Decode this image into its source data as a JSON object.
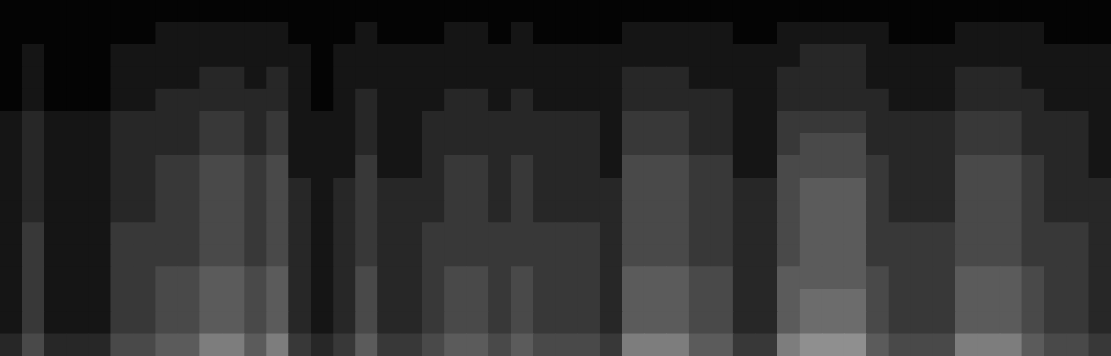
{
  "chart_data": {
    "type": "heatmap",
    "tick_labels": false,
    "grid": false,
    "color": "#a0a0a0",
    "zlim": [
      0,
      9
    ],
    "cells": [
      [
        0,
        0,
        0,
        0,
        0,
        0,
        0,
        0,
        0,
        0,
        0,
        0,
        0,
        0,
        0,
        0,
        0,
        0,
        0,
        0,
        0,
        0,
        0,
        0,
        0,
        0,
        0,
        0,
        0,
        0,
        0,
        0,
        0,
        0,
        0,
        0,
        0,
        0,
        0,
        0,
        0,
        0,
        0,
        0,
        0,
        0,
        0,
        0,
        0,
        0
      ],
      [
        0,
        0,
        0,
        0,
        0,
        0,
        0,
        1,
        1,
        1,
        1,
        1,
        1,
        0,
        0,
        0,
        1,
        0,
        0,
        0,
        1,
        1,
        0,
        1,
        0,
        0,
        0,
        0,
        1,
        1,
        1,
        1,
        1,
        0,
        0,
        1,
        1,
        1,
        1,
        1,
        0,
        0,
        0,
        1,
        1,
        1,
        1,
        0,
        0,
        0
      ],
      [
        0,
        1,
        0,
        0,
        0,
        1,
        1,
        1,
        1,
        1,
        1,
        1,
        1,
        1,
        0,
        1,
        1,
        1,
        1,
        1,
        1,
        1,
        1,
        1,
        1,
        1,
        1,
        1,
        1,
        1,
        1,
        1,
        1,
        1,
        1,
        1,
        2,
        2,
        2,
        1,
        1,
        1,
        1,
        1,
        1,
        1,
        1,
        1,
        1,
        1
      ],
      [
        0,
        1,
        0,
        0,
        0,
        1,
        1,
        1,
        1,
        2,
        2,
        1,
        2,
        1,
        0,
        1,
        1,
        1,
        1,
        1,
        1,
        1,
        1,
        1,
        1,
        1,
        1,
        1,
        2,
        2,
        2,
        1,
        1,
        1,
        1,
        2,
        2,
        2,
        2,
        1,
        1,
        1,
        1,
        2,
        2,
        2,
        1,
        1,
        1,
        1
      ],
      [
        0,
        1,
        0,
        0,
        0,
        1,
        1,
        2,
        2,
        2,
        2,
        2,
        2,
        1,
        0,
        1,
        2,
        1,
        1,
        1,
        2,
        2,
        1,
        2,
        1,
        1,
        1,
        1,
        2,
        2,
        2,
        2,
        2,
        1,
        1,
        2,
        2,
        2,
        2,
        2,
        1,
        1,
        1,
        2,
        2,
        2,
        2,
        1,
        1,
        1
      ],
      [
        1,
        2,
        1,
        1,
        1,
        2,
        2,
        2,
        2,
        3,
        3,
        2,
        3,
        1,
        1,
        1,
        2,
        1,
        1,
        2,
        2,
        2,
        2,
        2,
        2,
        2,
        2,
        1,
        3,
        3,
        3,
        2,
        2,
        1,
        1,
        3,
        3,
        3,
        3,
        2,
        2,
        2,
        2,
        3,
        3,
        3,
        2,
        2,
        2,
        1
      ],
      [
        1,
        2,
        1,
        1,
        1,
        2,
        2,
        2,
        2,
        3,
        3,
        2,
        3,
        1,
        1,
        1,
        2,
        1,
        1,
        2,
        2,
        2,
        2,
        2,
        2,
        2,
        2,
        1,
        3,
        3,
        3,
        2,
        2,
        1,
        1,
        3,
        4,
        4,
        4,
        2,
        2,
        2,
        2,
        3,
        3,
        3,
        2,
        2,
        2,
        1
      ],
      [
        1,
        2,
        1,
        1,
        1,
        2,
        2,
        3,
        3,
        4,
        4,
        3,
        4,
        1,
        1,
        1,
        3,
        1,
        1,
        2,
        3,
        3,
        2,
        3,
        2,
        2,
        2,
        1,
        4,
        4,
        4,
        3,
        3,
        1,
        1,
        4,
        4,
        4,
        4,
        3,
        2,
        2,
        2,
        4,
        4,
        4,
        3,
        2,
        2,
        1
      ],
      [
        1,
        2,
        1,
        1,
        1,
        2,
        2,
        3,
        3,
        4,
        4,
        3,
        4,
        2,
        1,
        2,
        3,
        2,
        2,
        2,
        3,
        3,
        2,
        3,
        2,
        2,
        2,
        2,
        4,
        4,
        4,
        3,
        3,
        2,
        2,
        4,
        5,
        5,
        5,
        3,
        2,
        2,
        2,
        4,
        4,
        4,
        3,
        2,
        2,
        2
      ],
      [
        1,
        2,
        1,
        1,
        1,
        2,
        2,
        3,
        3,
        4,
        4,
        3,
        4,
        2,
        1,
        2,
        3,
        2,
        2,
        2,
        3,
        3,
        2,
        3,
        2,
        2,
        2,
        2,
        4,
        4,
        4,
        3,
        3,
        2,
        2,
        4,
        5,
        5,
        5,
        3,
        2,
        2,
        2,
        4,
        4,
        4,
        3,
        2,
        2,
        2
      ],
      [
        1,
        3,
        1,
        1,
        1,
        3,
        3,
        3,
        3,
        4,
        4,
        3,
        4,
        2,
        1,
        2,
        3,
        2,
        2,
        3,
        3,
        3,
        3,
        3,
        3,
        3,
        3,
        2,
        4,
        4,
        4,
        3,
        3,
        2,
        2,
        4,
        5,
        5,
        5,
        3,
        3,
        3,
        3,
        4,
        4,
        4,
        3,
        3,
        3,
        2
      ],
      [
        1,
        3,
        1,
        1,
        1,
        3,
        3,
        3,
        3,
        4,
        4,
        3,
        4,
        2,
        1,
        2,
        3,
        2,
        2,
        3,
        3,
        3,
        3,
        3,
        3,
        3,
        3,
        2,
        4,
        4,
        4,
        3,
        3,
        2,
        2,
        4,
        5,
        5,
        5,
        3,
        3,
        3,
        3,
        4,
        4,
        4,
        3,
        3,
        3,
        2
      ],
      [
        1,
        3,
        1,
        1,
        1,
        3,
        3,
        4,
        4,
        5,
        5,
        4,
        5,
        2,
        1,
        2,
        4,
        2,
        2,
        3,
        4,
        4,
        3,
        4,
        3,
        3,
        3,
        2,
        5,
        5,
        5,
        4,
        4,
        2,
        2,
        5,
        5,
        5,
        5,
        4,
        3,
        3,
        3,
        5,
        5,
        5,
        4,
        3,
        3,
        2
      ],
      [
        1,
        3,
        1,
        1,
        1,
        3,
        3,
        4,
        4,
        5,
        5,
        4,
        5,
        2,
        1,
        2,
        4,
        2,
        2,
        3,
        4,
        4,
        3,
        4,
        3,
        3,
        3,
        2,
        5,
        5,
        5,
        4,
        4,
        2,
        2,
        5,
        6,
        6,
        6,
        4,
        3,
        3,
        3,
        5,
        5,
        5,
        4,
        3,
        3,
        2
      ],
      [
        1,
        3,
        1,
        1,
        1,
        3,
        3,
        4,
        4,
        5,
        5,
        4,
        5,
        2,
        1,
        2,
        4,
        2,
        2,
        3,
        4,
        4,
        3,
        4,
        3,
        3,
        3,
        2,
        5,
        5,
        5,
        4,
        4,
        2,
        2,
        5,
        6,
        6,
        6,
        4,
        3,
        3,
        3,
        5,
        5,
        5,
        4,
        3,
        3,
        2
      ],
      [
        2,
        4,
        2,
        2,
        2,
        4,
        4,
        5,
        5,
        7,
        7,
        5,
        7,
        3,
        2,
        3,
        5,
        3,
        3,
        4,
        5,
        5,
        4,
        5,
        4,
        4,
        4,
        3,
        7,
        7,
        7,
        5,
        5,
        3,
        3,
        7,
        8,
        8,
        8,
        5,
        4,
        4,
        4,
        7,
        7,
        7,
        5,
        4,
        4,
        3
      ]
    ]
  }
}
